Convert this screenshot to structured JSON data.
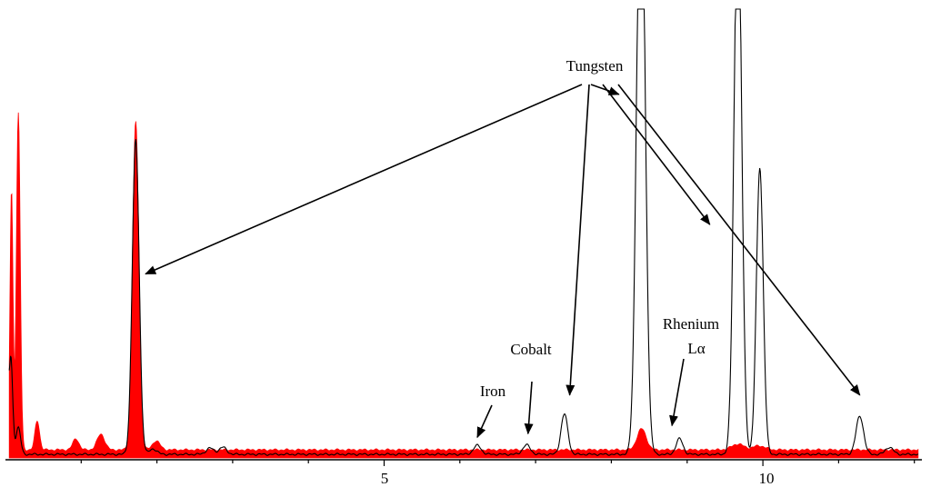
{
  "chart_data": {
    "type": "line",
    "title": "",
    "xlabel": "",
    "ylabel": "",
    "x_range": [
      0.05,
      12.1
    ],
    "y_range": [
      0,
      100
    ],
    "grid": false,
    "legend": "none",
    "xticks": [
      {
        "value": 1,
        "label": ""
      },
      {
        "value": 2,
        "label": ""
      },
      {
        "value": 3,
        "label": ""
      },
      {
        "value": 4,
        "label": ""
      },
      {
        "value": 5,
        "label": "5"
      },
      {
        "value": 6,
        "label": ""
      },
      {
        "value": 7,
        "label": ""
      },
      {
        "value": 8,
        "label": ""
      },
      {
        "value": 9,
        "label": ""
      },
      {
        "value": 10,
        "label": "10"
      },
      {
        "value": 11,
        "label": ""
      },
      {
        "value": 12,
        "label": ""
      }
    ],
    "colors": {
      "filled_spectrum": "#ff0000",
      "line_spectrum": "#000000",
      "axis": "#000000"
    },
    "series": [
      {
        "style": "filled",
        "color": "#ff0000",
        "baseline": 1.8,
        "peaks": [
          {
            "x": 0.08,
            "height": 58,
            "width": 0.02
          },
          {
            "x": 0.17,
            "height": 75,
            "width": 0.025
          },
          {
            "x": 0.42,
            "height": 6.5,
            "width": 0.03
          },
          {
            "x": 0.93,
            "height": 2.5,
            "width": 0.04
          },
          {
            "x": 1.26,
            "height": 3.5,
            "width": 0.05
          },
          {
            "x": 1.72,
            "height": 73,
            "width": 0.042
          },
          {
            "x": 1.99,
            "height": 2,
            "width": 0.05
          },
          {
            "x": 8.4,
            "height": 4.7,
            "width": 0.06
          },
          {
            "x": 9.67,
            "height": 1.3,
            "width": 0.08
          },
          {
            "x": 9.95,
            "height": 0.9,
            "width": 0.08
          }
        ]
      },
      {
        "style": "line",
        "color": "#000000",
        "baseline": 0.8,
        "peaks": [
          {
            "x": 0.02,
            "height": 62,
            "width": 0.012
          },
          {
            "x": 0.07,
            "height": 22,
            "width": 0.025
          },
          {
            "x": 0.17,
            "height": 6,
            "width": 0.03
          },
          {
            "x": 1.72,
            "height": 70,
            "width": 0.045
          },
          {
            "x": 1.95,
            "height": 1.2,
            "width": 0.05
          },
          {
            "x": 2.7,
            "height": 1.4,
            "width": 0.05
          },
          {
            "x": 2.87,
            "height": 1.6,
            "width": 0.05
          },
          {
            "x": 6.23,
            "height": 2,
            "width": 0.05
          },
          {
            "x": 6.88,
            "height": 2.1,
            "width": 0.05
          },
          {
            "x": 7.38,
            "height": 9,
            "width": 0.045
          },
          {
            "x": 8.39,
            "height": 140,
            "width": 0.055
          },
          {
            "x": 8.9,
            "height": 3.5,
            "width": 0.045
          },
          {
            "x": 9.67,
            "height": 126,
            "width": 0.05
          },
          {
            "x": 9.96,
            "height": 64,
            "width": 0.045
          },
          {
            "x": 11.28,
            "height": 8.5,
            "width": 0.05
          },
          {
            "x": 11.67,
            "height": 1.6,
            "width": 0.05
          }
        ]
      }
    ],
    "annotations": [
      {
        "key": "tungsten",
        "text": "Tungsten",
        "targets": [
          [
            1.85,
            41
          ],
          [
            8.1,
            81
          ],
          [
            7.45,
            14
          ],
          [
            9.3,
            52
          ],
          [
            11.28,
            14
          ]
        ]
      },
      {
        "key": "iron",
        "text": "Iron",
        "targets": [
          [
            6.23,
            4.6
          ]
        ]
      },
      {
        "key": "cobalt",
        "text": "Cobalt",
        "targets": [
          [
            6.9,
            5.4
          ]
        ]
      },
      {
        "key": "rhenium",
        "text": "Rhenium Lα",
        "targets": [
          [
            8.8,
            7.2
          ]
        ]
      }
    ]
  },
  "labels": {
    "tick_5": "5",
    "tick_10": "10",
    "tungsten": "Tungsten",
    "iron": "Iron",
    "cobalt": "Cobalt",
    "rhenium_line1": "Rhenium",
    "rhenium_line2": "Lα"
  }
}
